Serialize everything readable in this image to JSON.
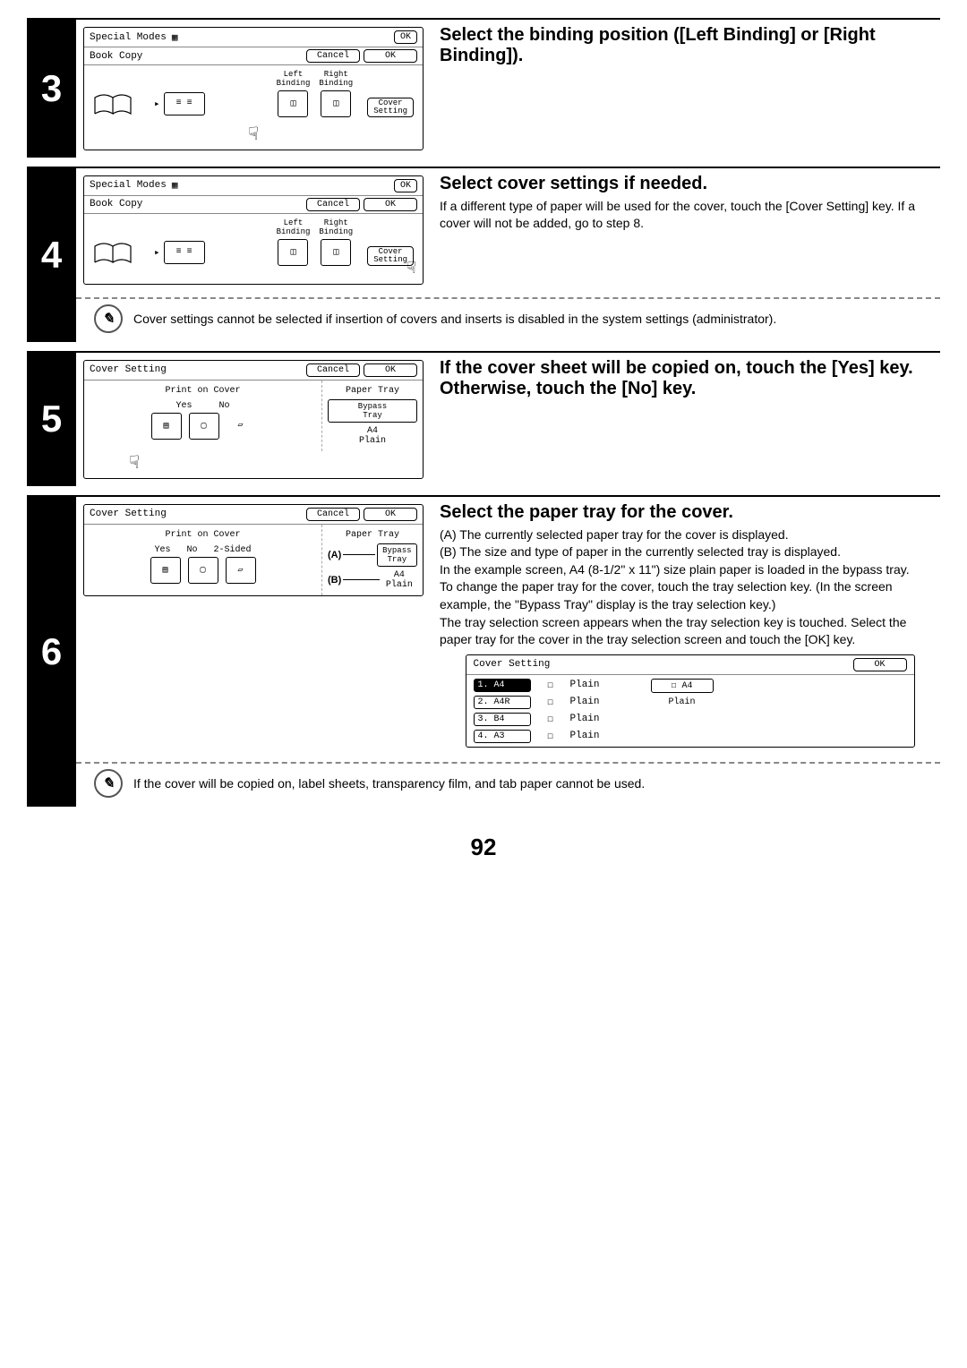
{
  "pageNumber": "92",
  "step3": {
    "num": "3",
    "heading": "Select the binding position ([Left Binding] or [Right Binding]).",
    "panel": {
      "title": "Special Modes",
      "okTop": "OK",
      "sub": "Book Copy",
      "cancel": "Cancel",
      "okSub": "OK",
      "leftBinding1": "Left",
      "leftBinding2": "Binding",
      "rightBinding1": "Right",
      "rightBinding2": "Binding",
      "coverSetting1": "Cover",
      "coverSetting2": "Setting"
    }
  },
  "step4": {
    "num": "4",
    "heading": "Select cover settings if needed.",
    "body": "If a different type of paper will be used for the cover, touch the [Cover Setting] key. If a cover will not be added, go to step 8.",
    "note": "Cover settings cannot be selected if insertion of covers and inserts is disabled in the system settings (administrator).",
    "panel": {
      "title": "Special Modes",
      "okTop": "OK",
      "sub": "Book Copy",
      "cancel": "Cancel",
      "okSub": "OK",
      "leftBinding1": "Left",
      "leftBinding2": "Binding",
      "rightBinding1": "Right",
      "rightBinding2": "Binding",
      "coverSetting1": "Cover",
      "coverSetting2": "Setting"
    }
  },
  "step5": {
    "num": "5",
    "heading": "If the cover sheet will be copied on, touch the [Yes] key. Otherwise, touch the [No] key.",
    "panel": {
      "title": "Cover Setting",
      "cancel": "Cancel",
      "ok": "OK",
      "print": "Print on Cover",
      "yes": "Yes",
      "no": "No",
      "paperTray": "Paper Tray",
      "bypass1": "Bypass",
      "bypass2": "Tray",
      "size": "A4",
      "type": "Plain"
    }
  },
  "step6": {
    "num": "6",
    "heading": "Select the paper tray for the cover.",
    "lineA": "(A) The currently selected paper tray for the cover is displayed.",
    "lineB": "(B) The size and type of paper in the currently selected tray is displayed.",
    "body1": "In the example screen, A4 (8-1/2\" x 11\") size plain paper is loaded in the bypass tray.",
    "body2": "To change the paper tray for the cover, touch the tray selection key. (In the screen example, the \"Bypass Tray\" display is the tray selection key.)",
    "body3": "The tray selection screen appears when the tray selection key is touched. Select the paper tray for the cover in the tray selection screen and touch the [OK] key.",
    "note": "If the cover will be copied on, label sheets, transparency film, and tab paper cannot be used.",
    "panel": {
      "title": "Cover Setting",
      "cancel": "Cancel",
      "ok": "OK",
      "print": "Print on Cover",
      "yes": "Yes",
      "no": "No",
      "twoSided": "2-Sided",
      "paperTray": "Paper Tray",
      "bypass1": "Bypass",
      "bypass2": "Tray",
      "size": "A4",
      "type": "Plain",
      "annotA": "(A)",
      "annotB": "(B)"
    },
    "trayTable": {
      "title": "Cover Setting",
      "ok": "OK",
      "rows": [
        {
          "n": "1.",
          "sz": "A4",
          "t": "Plain",
          "sel": true
        },
        {
          "n": "2.",
          "sz": "A4R",
          "t": "Plain",
          "sel": false
        },
        {
          "n": "3.",
          "sz": "B4",
          "t": "Plain",
          "sel": false
        },
        {
          "n": "4.",
          "sz": "A3",
          "t": "Plain",
          "sel": false
        }
      ],
      "rightSize": "A4",
      "rightType": "Plain"
    }
  }
}
